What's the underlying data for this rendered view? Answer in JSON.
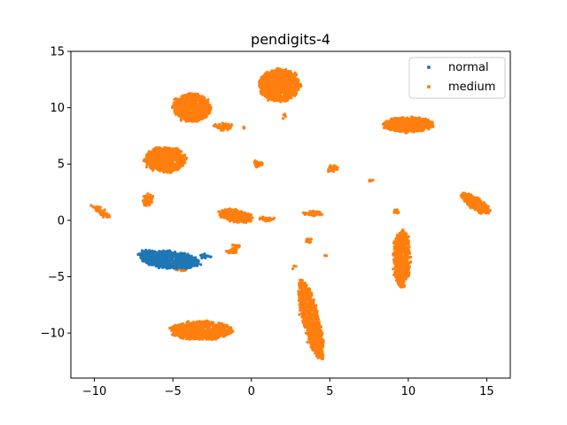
{
  "chart_data": {
    "type": "scatter",
    "title": "pendigits-4",
    "xlabel": "",
    "ylabel": "",
    "xlim": [
      -11.5,
      16.5
    ],
    "ylim": [
      -14.0,
      15.0
    ],
    "xticks": [
      "−10",
      "−5",
      "0",
      "5",
      "10",
      "15"
    ],
    "xtick_values": [
      -10,
      -5,
      0,
      5,
      10,
      15
    ],
    "yticks": [
      "−10",
      "−5",
      "0",
      "5",
      "10",
      "15"
    ],
    "ytick_values": [
      -10,
      -5,
      0,
      5,
      10,
      15
    ],
    "grid": false,
    "legend_position": "top-right",
    "series": [
      {
        "name": "normal",
        "color": "#1f77b4",
        "clusters": [
          {
            "cx": -5.2,
            "cy": -3.5,
            "rx": 1.9,
            "ry": 0.75,
            "n": 650,
            "rot": -8
          },
          {
            "cx": -6.6,
            "cy": -3.0,
            "rx": 0.5,
            "ry": 0.4,
            "n": 60,
            "rot": 0
          },
          {
            "cx": -3.0,
            "cy": -3.2,
            "rx": 0.4,
            "ry": 0.15,
            "n": 15,
            "rot": 0
          }
        ]
      },
      {
        "name": "medium",
        "color": "#ff7f0e",
        "clusters": [
          {
            "cx": 1.8,
            "cy": 12.0,
            "rx": 1.3,
            "ry": 1.4,
            "n": 900,
            "rot": 0
          },
          {
            "cx": -3.8,
            "cy": 10.0,
            "rx": 1.2,
            "ry": 1.2,
            "n": 700,
            "rot": 0
          },
          {
            "cx": -1.8,
            "cy": 8.3,
            "rx": 0.6,
            "ry": 0.3,
            "n": 60,
            "rot": 0
          },
          {
            "cx": 10.0,
            "cy": 8.5,
            "rx": 1.6,
            "ry": 0.6,
            "n": 700,
            "rot": 0
          },
          {
            "cx": -5.5,
            "cy": 5.4,
            "rx": 1.3,
            "ry": 1.1,
            "n": 650,
            "rot": 0
          },
          {
            "cx": 0.4,
            "cy": 5.0,
            "rx": 0.25,
            "ry": 0.35,
            "n": 25,
            "rot": 0
          },
          {
            "cx": 5.2,
            "cy": 4.6,
            "rx": 0.35,
            "ry": 0.25,
            "n": 30,
            "rot": 0
          },
          {
            "cx": 14.3,
            "cy": 1.5,
            "rx": 1.2,
            "ry": 0.4,
            "n": 350,
            "rot": -45
          },
          {
            "cx": -9.6,
            "cy": 0.8,
            "rx": 0.7,
            "ry": 0.2,
            "n": 70,
            "rot": -40
          },
          {
            "cx": -6.6,
            "cy": 1.8,
            "rx": 0.3,
            "ry": 0.5,
            "n": 50,
            "rot": 0
          },
          {
            "cx": -1.0,
            "cy": 0.4,
            "rx": 1.1,
            "ry": 0.5,
            "n": 300,
            "rot": -15
          },
          {
            "cx": 1.0,
            "cy": 0.1,
            "rx": 0.5,
            "ry": 0.15,
            "n": 30,
            "rot": 0
          },
          {
            "cx": 3.9,
            "cy": 0.6,
            "rx": 0.6,
            "ry": 0.15,
            "n": 40,
            "rot": 0
          },
          {
            "cx": 9.2,
            "cy": 0.7,
            "rx": 0.15,
            "ry": 0.2,
            "n": 8,
            "rot": 0
          },
          {
            "cx": -1.0,
            "cy": -2.4,
            "rx": 0.3,
            "ry": 0.2,
            "n": 20,
            "rot": 0
          },
          {
            "cx": -1.2,
            "cy": -2.8,
            "rx": 0.4,
            "ry": 0.12,
            "n": 25,
            "rot": 0
          },
          {
            "cx": 3.7,
            "cy": -1.8,
            "rx": 0.2,
            "ry": 0.15,
            "n": 12,
            "rot": 0
          },
          {
            "cx": -4.5,
            "cy": -4.3,
            "rx": 0.5,
            "ry": 0.15,
            "n": 40,
            "rot": 0
          },
          {
            "cx": 9.6,
            "cy": -3.4,
            "rx": 0.5,
            "ry": 2.5,
            "n": 600,
            "rot": 0
          },
          {
            "cx": 3.8,
            "cy": -8.8,
            "rx": 0.5,
            "ry": 3.6,
            "n": 700,
            "rot": 10
          },
          {
            "cx": -3.2,
            "cy": -9.8,
            "rx": 2.0,
            "ry": 0.8,
            "n": 700,
            "rot": 0
          },
          {
            "cx": 2.7,
            "cy": -4.1,
            "rx": 0.1,
            "ry": 0.1,
            "n": 3,
            "rot": 0
          },
          {
            "cx": 4.8,
            "cy": -3.1,
            "rx": 0.1,
            "ry": 0.1,
            "n": 3,
            "rot": 0
          },
          {
            "cx": 7.6,
            "cy": 3.5,
            "rx": 0.08,
            "ry": 0.1,
            "n": 4,
            "rot": 0
          },
          {
            "cx": 2.1,
            "cy": 9.3,
            "rx": 0.15,
            "ry": 0.15,
            "n": 5,
            "rot": 0
          },
          {
            "cx": -0.5,
            "cy": 8.2,
            "rx": 0.1,
            "ry": 0.1,
            "n": 3,
            "rot": 0
          }
        ]
      }
    ]
  }
}
